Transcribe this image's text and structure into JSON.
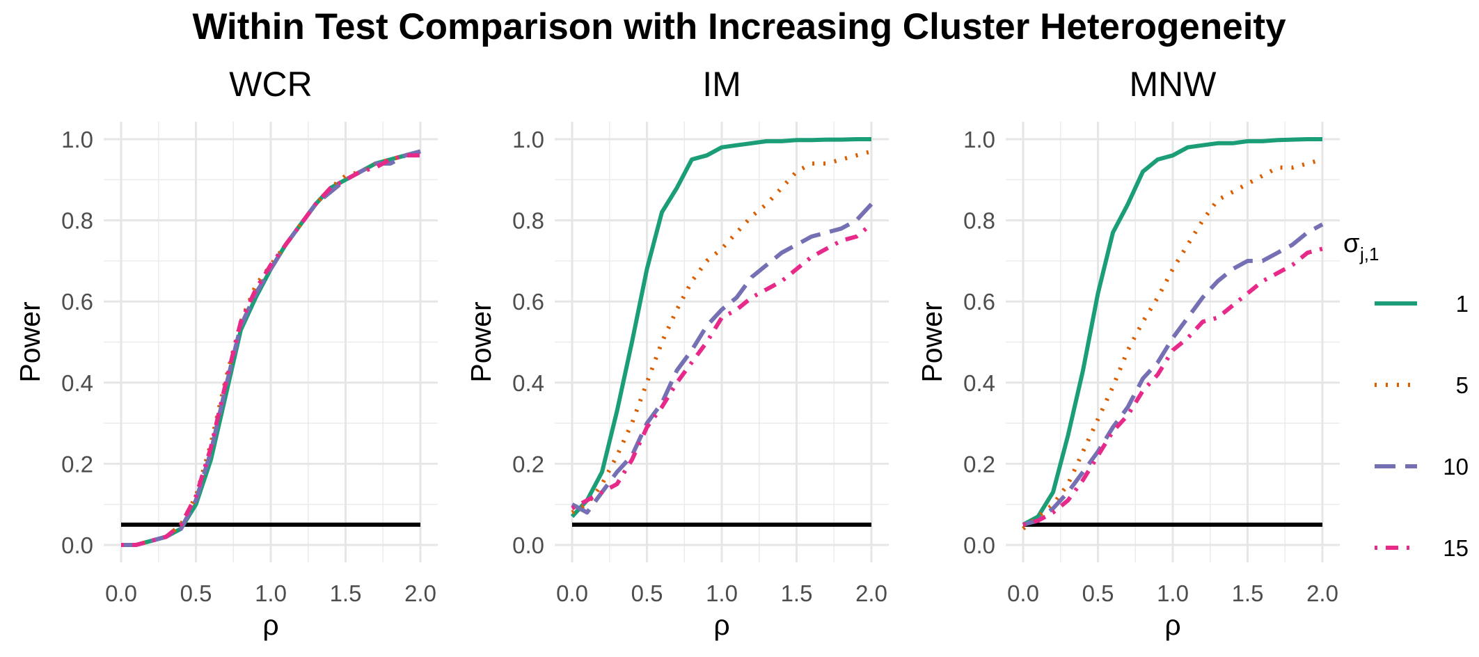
{
  "chart_data": {
    "title": "Within Test Comparison with Increasing Cluster Heterogeneity",
    "type": "line",
    "xlabel": "ρ",
    "ylabel": "Power",
    "xlim": [
      0,
      2
    ],
    "ylim": [
      0,
      1
    ],
    "x_ticks": [
      "0.0",
      "0.5",
      "1.0",
      "1.5",
      "2.0"
    ],
    "y_ticks": [
      "0.0",
      "0.2",
      "0.4",
      "0.6",
      "0.8",
      "1.0"
    ],
    "reference_line": 0.05,
    "grid": true,
    "legend": {
      "title_base": "σ",
      "title_sub": "j,1",
      "placement": "right",
      "entries": [
        "1",
        "5",
        "10",
        "15"
      ]
    },
    "series_styles": [
      {
        "key": "1",
        "color": "#1b9e77",
        "dash": "solid"
      },
      {
        "key": "5",
        "color": "#d95f02",
        "dash": "dotted"
      },
      {
        "key": "10",
        "color": "#7570b3",
        "dash": "dashed"
      },
      {
        "key": "15",
        "color": "#e7298a",
        "dash": "dotdash"
      }
    ],
    "x": [
      0.0,
      0.1,
      0.2,
      0.3,
      0.4,
      0.5,
      0.6,
      0.7,
      0.8,
      0.9,
      1.0,
      1.1,
      1.2,
      1.3,
      1.4,
      1.5,
      1.6,
      1.7,
      1.8,
      1.9,
      2.0
    ],
    "panels": [
      {
        "title": "WCR",
        "series": [
          {
            "name": "1",
            "values": [
              0.0,
              0.0,
              0.01,
              0.02,
              0.04,
              0.1,
              0.21,
              0.37,
              0.53,
              0.61,
              0.68,
              0.74,
              0.79,
              0.84,
              0.88,
              0.9,
              0.92,
              0.94,
              0.95,
              0.96,
              0.97
            ]
          },
          {
            "name": "5",
            "values": [
              0.0,
              0.0,
              0.01,
              0.02,
              0.05,
              0.12,
              0.25,
              0.41,
              0.55,
              0.64,
              0.69,
              0.74,
              0.79,
              0.84,
              0.88,
              0.91,
              0.92,
              0.94,
              0.95,
              0.96,
              0.97
            ]
          },
          {
            "name": "10",
            "values": [
              0.0,
              0.0,
              0.01,
              0.02,
              0.04,
              0.11,
              0.23,
              0.39,
              0.54,
              0.62,
              0.68,
              0.74,
              0.79,
              0.84,
              0.87,
              0.9,
              0.92,
              0.94,
              0.94,
              0.96,
              0.97
            ]
          },
          {
            "name": "15",
            "values": [
              0.0,
              0.0,
              0.01,
              0.02,
              0.05,
              0.12,
              0.24,
              0.4,
              0.55,
              0.63,
              0.69,
              0.74,
              0.79,
              0.84,
              0.88,
              0.9,
              0.92,
              0.93,
              0.95,
              0.96,
              0.96
            ]
          }
        ]
      },
      {
        "title": "IM",
        "series": [
          {
            "name": "1",
            "values": [
              0.07,
              0.11,
              0.18,
              0.33,
              0.5,
              0.68,
              0.82,
              0.88,
              0.95,
              0.96,
              0.98,
              0.985,
              0.99,
              0.995,
              0.995,
              0.998,
              0.998,
              0.999,
              0.999,
              1.0,
              1.0
            ]
          },
          {
            "name": "5",
            "values": [
              0.08,
              0.1,
              0.15,
              0.22,
              0.3,
              0.4,
              0.5,
              0.58,
              0.65,
              0.7,
              0.73,
              0.77,
              0.81,
              0.84,
              0.88,
              0.92,
              0.94,
              0.94,
              0.95,
              0.96,
              0.97
            ]
          },
          {
            "name": "10",
            "values": [
              0.1,
              0.08,
              0.13,
              0.18,
              0.22,
              0.3,
              0.35,
              0.43,
              0.48,
              0.54,
              0.58,
              0.61,
              0.66,
              0.69,
              0.72,
              0.74,
              0.76,
              0.77,
              0.78,
              0.8,
              0.84
            ]
          },
          {
            "name": "15",
            "values": [
              0.09,
              0.11,
              0.13,
              0.15,
              0.21,
              0.29,
              0.34,
              0.4,
              0.45,
              0.5,
              0.56,
              0.58,
              0.61,
              0.63,
              0.65,
              0.68,
              0.71,
              0.73,
              0.75,
              0.76,
              0.79
            ]
          }
        ]
      },
      {
        "title": "MNW",
        "series": [
          {
            "name": "1",
            "values": [
              0.05,
              0.07,
              0.13,
              0.27,
              0.43,
              0.62,
              0.77,
              0.84,
              0.92,
              0.95,
              0.96,
              0.98,
              0.985,
              0.99,
              0.99,
              0.995,
              0.995,
              0.998,
              0.999,
              1.0,
              1.0
            ]
          },
          {
            "name": "5",
            "values": [
              0.04,
              0.07,
              0.1,
              0.15,
              0.23,
              0.31,
              0.39,
              0.48,
              0.55,
              0.61,
              0.68,
              0.74,
              0.8,
              0.85,
              0.87,
              0.89,
              0.91,
              0.93,
              0.93,
              0.94,
              0.95
            ]
          },
          {
            "name": "10",
            "values": [
              0.05,
              0.06,
              0.09,
              0.13,
              0.18,
              0.23,
              0.29,
              0.34,
              0.41,
              0.45,
              0.51,
              0.56,
              0.61,
              0.65,
              0.68,
              0.7,
              0.7,
              0.72,
              0.74,
              0.77,
              0.79
            ]
          },
          {
            "name": "15",
            "values": [
              0.05,
              0.06,
              0.08,
              0.11,
              0.16,
              0.22,
              0.28,
              0.32,
              0.38,
              0.42,
              0.48,
              0.51,
              0.55,
              0.56,
              0.59,
              0.62,
              0.65,
              0.67,
              0.69,
              0.72,
              0.73
            ]
          }
        ]
      }
    ]
  }
}
